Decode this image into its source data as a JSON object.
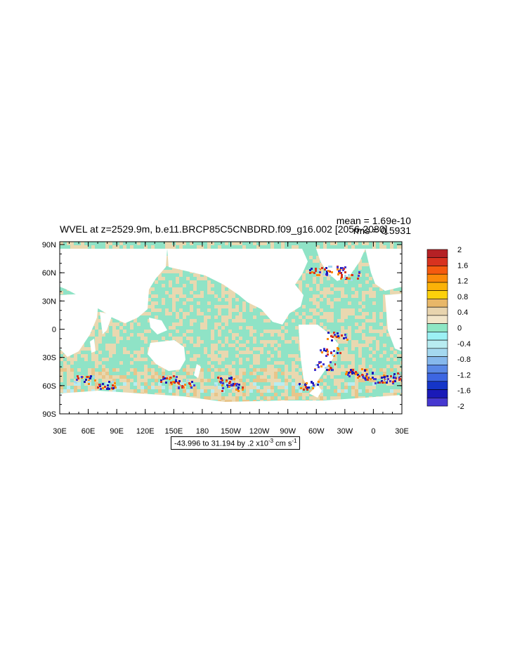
{
  "plot": {
    "title": "WVEL at z=2529.9m, b.e11.BRCP85C5CNBDRD.f09_g16.002 [2056-2080]",
    "mean_label": "mean = 1.69e-10",
    "rms_label": "rms = 0.5931",
    "info": {
      "range_text": "-43.996 to 31.194 by .2 x10",
      "exponent": "-3",
      "units": " cm s",
      "units_exponent": "-1"
    }
  },
  "axes": {
    "lat_labels": [
      "90N",
      "60N",
      "30N",
      "0",
      "30S",
      "60S",
      "90S"
    ],
    "lon_labels": [
      "30E",
      "60E",
      "90E",
      "120E",
      "150E",
      "180",
      "150W",
      "120W",
      "90W",
      "60W",
      "30W",
      "0",
      "30E"
    ]
  },
  "colorbar": {
    "labels": [
      "2",
      "1.6",
      "1.2",
      "0.8",
      "0.4",
      "0",
      "-0.4",
      "-0.8",
      "-1.2",
      "-1.6",
      "-2"
    ],
    "colors": [
      "#b52125",
      "#d8321f",
      "#f55a0f",
      "#fb8a09",
      "#fbb208",
      "#fcd10b",
      "#e8b768",
      "#e8d4ae",
      "#f2e5c9",
      "#8ee6c4",
      "#9cf1f4",
      "#b8ecf1",
      "#a4d8ef",
      "#86b8ec",
      "#5a88e6",
      "#3d66e2",
      "#1535c8",
      "#1a1ab8",
      "#4638d0"
    ]
  },
  "map": {
    "ocean_color": "#8fe3c6",
    "alt_color": "#e9d8b0",
    "southern_color": "#e8c58a",
    "hot_colors": [
      "#fb8a09",
      "#d8321f",
      "#4638d0",
      "#1a1ab8",
      "#a4d8ef"
    ]
  }
}
